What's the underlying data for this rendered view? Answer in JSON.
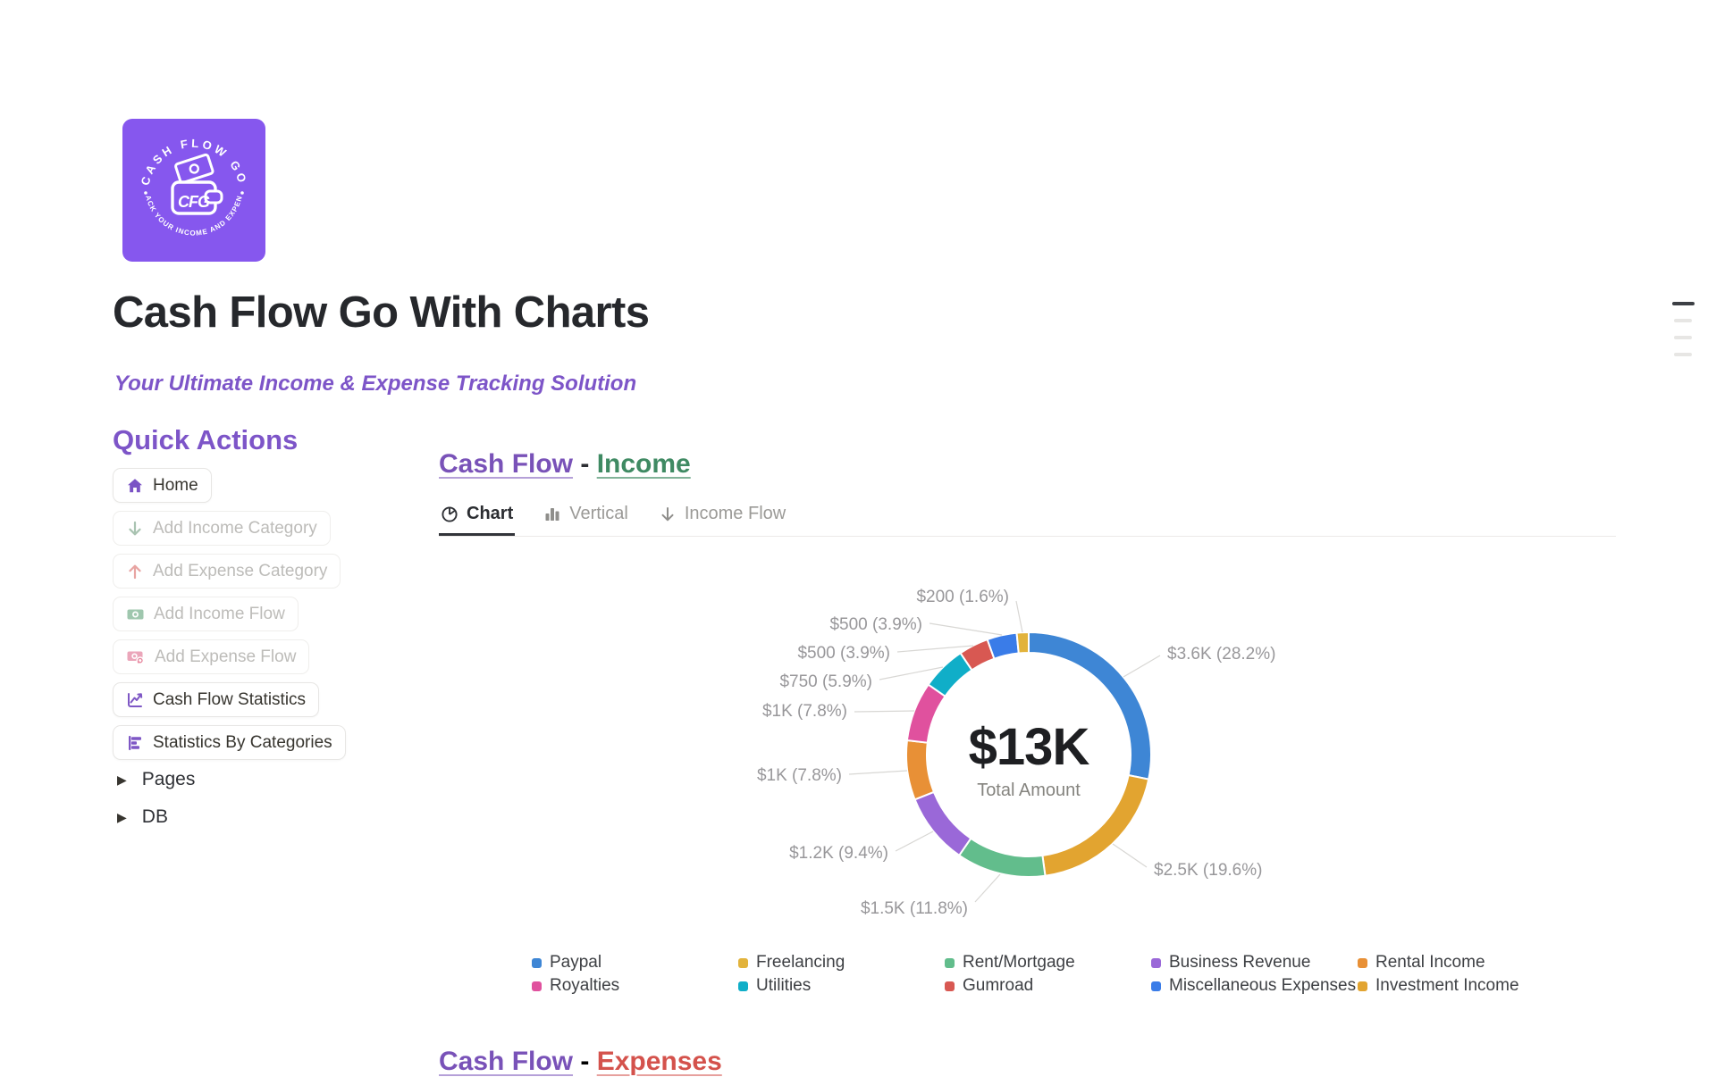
{
  "page": {
    "title": "Cash Flow Go With Charts",
    "subtitle": "Your Ultimate Income & Expense Tracking Solution"
  },
  "logo": {
    "arc_top": "CASH FLOW GO",
    "arc_bottom": "TRACK YOUR INCOME AND EXPENSE",
    "monogram": "CFG"
  },
  "sidebar": {
    "heading": "Quick Actions",
    "buttons": [
      {
        "label": "Home",
        "icon": "home-icon",
        "enabled": true
      },
      {
        "label": "Add Income Category",
        "icon": "arrow-down-icon",
        "enabled": false
      },
      {
        "label": "Add Expense Category",
        "icon": "arrow-up-icon",
        "enabled": false
      },
      {
        "label": "Add Income Flow",
        "icon": "banknote-icon",
        "enabled": false
      },
      {
        "label": "Add Expense Flow",
        "icon": "banknote-refund-icon",
        "enabled": false
      },
      {
        "label": "Cash Flow Statistics",
        "icon": "line-chart-icon",
        "enabled": true
      },
      {
        "label": "Statistics By Categories",
        "icon": "bar-chart-horizontal-icon",
        "enabled": true
      }
    ],
    "toggles": [
      {
        "label": "Pages"
      },
      {
        "label": "DB"
      }
    ]
  },
  "income_section": {
    "title_left": "Cash Flow",
    "separator": "-",
    "title_right": "Income",
    "tabs": [
      {
        "label": "Chart",
        "active": true
      },
      {
        "label": "Vertical",
        "active": false
      },
      {
        "label": "Income Flow",
        "active": false
      }
    ]
  },
  "expense_section": {
    "title_left": "Cash Flow",
    "separator": "-",
    "title_right": "Expenses"
  },
  "chart_data": {
    "type": "pie",
    "subtype": "donut",
    "title": "Cash Flow - Income",
    "center": {
      "total": "$13K",
      "caption": "Total Amount"
    },
    "total_value": 12750,
    "slices": [
      {
        "name": "Paypal",
        "value": 3600,
        "pct": 28.2,
        "label": "$3.6K (28.2%)",
        "color": "#3e86d5"
      },
      {
        "name": "Investment Income",
        "value": 2500,
        "pct": 19.6,
        "label": "$2.5K (19.6%)",
        "color": "#e2a430"
      },
      {
        "name": "Rent/Mortgage",
        "value": 1500,
        "pct": 11.8,
        "label": "$1.5K (11.8%)",
        "color": "#62bd8c"
      },
      {
        "name": "Business Revenue",
        "value": 1200,
        "pct": 9.4,
        "label": "$1.2K (9.4%)",
        "color": "#9a68d8"
      },
      {
        "name": "Rental Income",
        "value": 1000,
        "pct": 7.8,
        "label": "$1K (7.8%)",
        "color": "#e89036"
      },
      {
        "name": "Royalties",
        "value": 1000,
        "pct": 7.8,
        "label": "$1K (7.8%)",
        "color": "#e0519e"
      },
      {
        "name": "Utilities",
        "value": 750,
        "pct": 5.9,
        "label": "$750 (5.9%)",
        "color": "#10aec8"
      },
      {
        "name": "Gumroad",
        "value": 500,
        "pct": 3.9,
        "label": "$500 (3.9%)",
        "color": "#d85852"
      },
      {
        "name": "Miscellaneous Expenses",
        "value": 500,
        "pct": 3.9,
        "label": "$500 (3.9%)",
        "color": "#3a7ce8"
      },
      {
        "name": "Freelancing",
        "value": 200,
        "pct": 1.6,
        "label": "$200 (1.6%)",
        "color": "#e2b33c"
      }
    ],
    "legend": [
      {
        "label": "Paypal",
        "color": "#3e86d5"
      },
      {
        "label": "Royalties",
        "color": "#e0519e"
      },
      {
        "label": "Freelancing",
        "color": "#e2b33c"
      },
      {
        "label": "Utilities",
        "color": "#10aec8"
      },
      {
        "label": "Rent/Mortgage",
        "color": "#62bd8c"
      },
      {
        "label": "Gumroad",
        "color": "#d85852"
      },
      {
        "label": "Business Revenue",
        "color": "#9a68d8"
      },
      {
        "label": "Miscellaneous Expenses",
        "color": "#3a7ce8"
      },
      {
        "label": "Rental Income",
        "color": "#e89036"
      },
      {
        "label": "Investment Income",
        "color": "#e2a430"
      }
    ],
    "legend_position": "bottom"
  }
}
